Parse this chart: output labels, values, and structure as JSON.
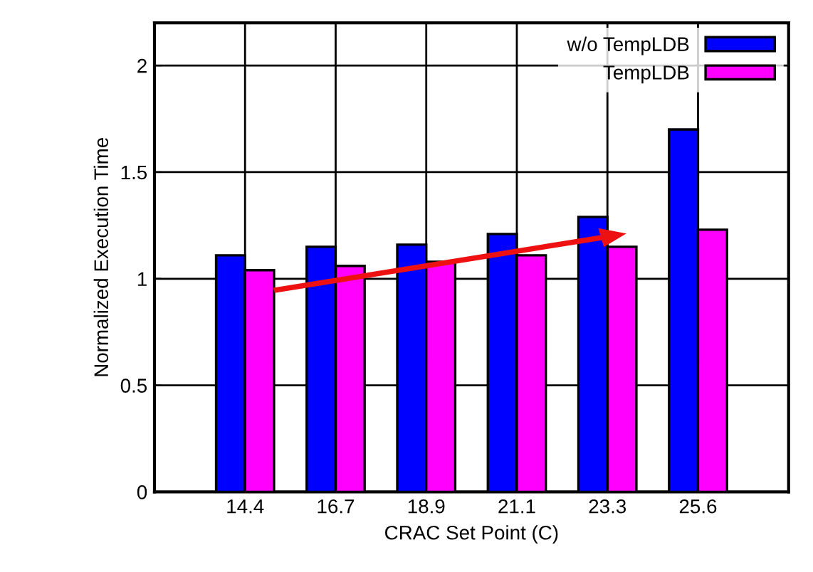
{
  "chart_data": {
    "type": "bar",
    "xlabel": "CRAC Set Point (C)",
    "ylabel": "Normalized Execution Time",
    "categories": [
      "14.4",
      "16.7",
      "18.9",
      "21.1",
      "23.3",
      "25.6"
    ],
    "series": [
      {
        "name": "w/o TempLDB",
        "color": "#0000ff",
        "values": [
          1.11,
          1.15,
          1.16,
          1.21,
          1.29,
          1.7
        ]
      },
      {
        "name": "TempLDB",
        "color": "#ff00ff",
        "values": [
          1.04,
          1.06,
          1.08,
          1.11,
          1.15,
          1.23
        ]
      }
    ],
    "ylim": [
      0,
      2.2
    ],
    "yticks": [
      0,
      0.5,
      1,
      1.5,
      2
    ],
    "grid": true,
    "legend": "top right"
  }
}
